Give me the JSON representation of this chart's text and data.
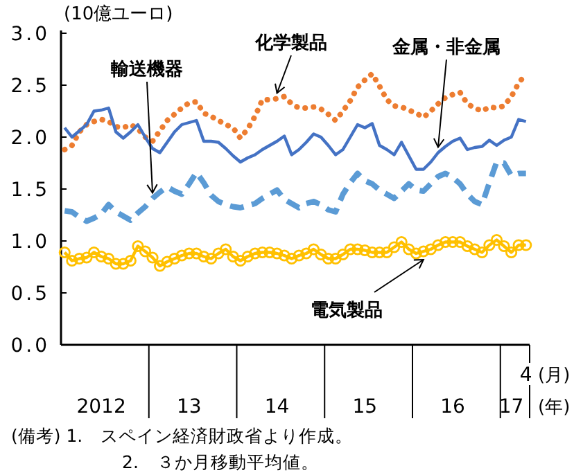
{
  "chart_data": {
    "type": "line",
    "ylabel": "(10億ユーロ)",
    "categories": [
      null,
      null,
      null,
      null,
      null,
      "2012",
      null,
      null,
      null,
      null,
      null,
      null,
      null,
      null,
      null,
      null,
      null,
      "13",
      null,
      null,
      null,
      null,
      null,
      null,
      null,
      null,
      null,
      null,
      null,
      "14",
      null,
      null,
      null,
      null,
      null,
      null,
      null,
      null,
      null,
      null,
      null,
      "15",
      null,
      null,
      null,
      null,
      null,
      null,
      null,
      null,
      null,
      null,
      null,
      "16",
      null,
      null,
      null,
      null,
      null,
      null,
      null,
      "17",
      null,
      "4"
    ],
    "ylim": [
      0,
      3
    ],
    "yticks": [
      {
        "value": 0,
        "label": "0.0"
      },
      {
        "value": 0.5,
        "label": "0.5"
      },
      {
        "value": 1,
        "label": "1.0"
      },
      {
        "value": 1.5,
        "label": "1.5"
      },
      {
        "value": 2,
        "label": "2.0"
      },
      {
        "value": 2.5,
        "label": "2.5"
      },
      {
        "value": 3,
        "label": "3.0"
      }
    ],
    "series": [
      {
        "name": "化学製品",
        "color": "#ed7d31",
        "line_style": "dotted",
        "values": [
          1.88,
          1.92,
          2.05,
          2.12,
          2.15,
          2.17,
          2.15,
          2.1,
          2.09,
          2.12,
          2.08,
          2.0,
          1.96,
          2.06,
          2.16,
          2.22,
          2.28,
          2.33,
          2.34,
          2.23,
          2.2,
          2.16,
          2.12,
          2.09,
          1.99,
          2.08,
          2.2,
          2.36,
          2.36,
          2.37,
          2.39,
          2.32,
          2.28,
          2.28,
          2.29,
          2.27,
          2.22,
          2.16,
          2.25,
          2.35,
          2.48,
          2.55,
          2.61,
          2.49,
          2.36,
          2.3,
          2.29,
          2.26,
          2.23,
          2.19,
          2.25,
          2.32,
          2.38,
          2.41,
          2.43,
          2.32,
          2.28,
          2.25,
          2.29,
          2.28,
          2.3,
          2.39,
          2.52,
          2.61
        ]
      },
      {
        "name": "金属・非金属",
        "color": "#4472c4",
        "line_style": "solid",
        "values": [
          2.09,
          2.0,
          2.06,
          2.12,
          2.25,
          2.26,
          2.28,
          2.05,
          1.99,
          2.05,
          2.12,
          2.0,
          1.89,
          1.85,
          1.95,
          2.05,
          2.12,
          2.14,
          2.16,
          1.96,
          1.96,
          1.95,
          1.89,
          1.82,
          1.76,
          1.8,
          1.83,
          1.88,
          1.92,
          1.96,
          2.01,
          1.83,
          1.88,
          1.95,
          2.03,
          2.0,
          1.92,
          1.83,
          1.88,
          2.0,
          2.12,
          2.09,
          2.13,
          1.92,
          1.88,
          1.83,
          1.95,
          1.82,
          1.69,
          1.69,
          1.76,
          1.85,
          1.91,
          1.96,
          1.99,
          1.88,
          1.9,
          1.91,
          1.97,
          1.92,
          1.97,
          2.0,
          2.17,
          2.15
        ]
      },
      {
        "name": "輸送機器",
        "color": "#5b9bd5",
        "line_style": "dashed",
        "values": [
          1.29,
          1.28,
          1.23,
          1.19,
          1.22,
          1.26,
          1.35,
          1.28,
          1.24,
          1.2,
          1.27,
          1.33,
          1.41,
          1.47,
          1.52,
          1.48,
          1.45,
          1.55,
          1.66,
          1.56,
          1.44,
          1.38,
          1.35,
          1.33,
          1.32,
          1.34,
          1.36,
          1.41,
          1.45,
          1.49,
          1.4,
          1.36,
          1.32,
          1.36,
          1.38,
          1.35,
          1.3,
          1.28,
          1.45,
          1.56,
          1.65,
          1.58,
          1.55,
          1.49,
          1.45,
          1.41,
          1.48,
          1.55,
          1.49,
          1.48,
          1.55,
          1.62,
          1.65,
          1.61,
          1.55,
          1.45,
          1.38,
          1.35,
          1.56,
          1.76,
          1.75,
          1.63,
          1.65,
          1.65
        ]
      },
      {
        "name": "電気製品",
        "color": "#ffc000",
        "line_style": "solid",
        "marker": "circle",
        "values": [
          0.89,
          0.81,
          0.83,
          0.84,
          0.89,
          0.85,
          0.83,
          0.78,
          0.78,
          0.81,
          0.95,
          0.9,
          0.84,
          0.76,
          0.8,
          0.83,
          0.86,
          0.88,
          0.88,
          0.85,
          0.83,
          0.88,
          0.92,
          0.85,
          0.81,
          0.85,
          0.88,
          0.89,
          0.89,
          0.88,
          0.86,
          0.83,
          0.86,
          0.88,
          0.92,
          0.87,
          0.83,
          0.83,
          0.87,
          0.92,
          0.92,
          0.91,
          0.89,
          0.89,
          0.89,
          0.94,
          0.99,
          0.92,
          0.88,
          0.9,
          0.92,
          0.96,
          0.99,
          0.99,
          0.99,
          0.95,
          0.92,
          0.89,
          0.96,
          1.01,
          0.95,
          0.89,
          0.96,
          0.96
        ]
      }
    ],
    "annotations": [
      "(月)",
      "(年)",
      "(備考) 1.　スペイン経済財政省より作成。",
      "2.　３か月移動平均値。"
    ]
  }
}
